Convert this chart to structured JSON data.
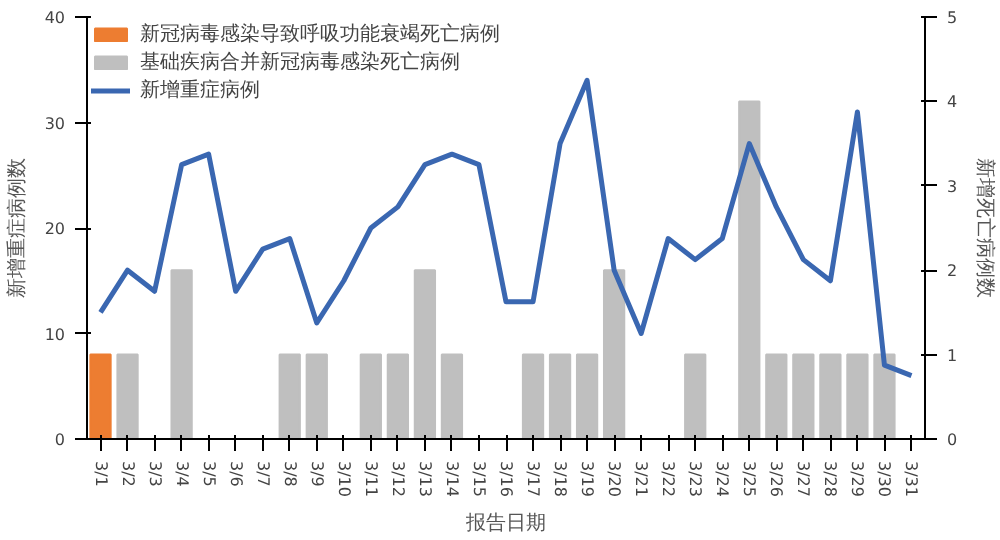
{
  "chart_data": {
    "type": "bar",
    "categories": [
      "3/1",
      "3/2",
      "3/3",
      "3/4",
      "3/5",
      "3/6",
      "3/7",
      "3/8",
      "3/9",
      "3/10",
      "3/11",
      "3/12",
      "3/13",
      "3/14",
      "3/15",
      "3/16",
      "3/17",
      "3/18",
      "3/19",
      "3/20",
      "3/21",
      "3/22",
      "3/23",
      "3/24",
      "3/25",
      "3/26",
      "3/27",
      "3/28",
      "3/29",
      "3/30",
      "3/31"
    ],
    "series": [
      {
        "name": "新冠病毒感染导致呼吸功能衰竭死亡病例",
        "color": "#ed7d31",
        "axis": "y2",
        "values": [
          1,
          null,
          null,
          null,
          null,
          null,
          null,
          null,
          null,
          null,
          null,
          null,
          null,
          null,
          null,
          null,
          null,
          null,
          null,
          null,
          null,
          null,
          null,
          null,
          null,
          null,
          null,
          null,
          null,
          null,
          null
        ]
      },
      {
        "name": "基础疾病合并新冠病毒感染死亡病例",
        "color": "#bfbfbf",
        "axis": "y2",
        "values": [
          null,
          1,
          null,
          2,
          null,
          null,
          null,
          1,
          1,
          null,
          1,
          1,
          2,
          1,
          null,
          null,
          1,
          1,
          1,
          2,
          null,
          null,
          1,
          null,
          4,
          1,
          1,
          1,
          1,
          1,
          null
        ]
      },
      {
        "name": "新增重症病例",
        "color": "#3a67b1",
        "type": "line",
        "values": [
          12,
          16,
          14,
          26,
          27,
          14,
          18,
          19,
          11,
          15,
          20,
          22,
          26,
          27,
          26,
          13,
          13,
          28,
          34,
          16,
          10,
          19,
          17,
          19,
          28,
          22,
          17,
          15,
          31,
          7,
          6
        ]
      }
    ],
    "xlabel": "报告日期",
    "ylabel": "新增重症病例数",
    "y2label": "新增死亡病例数",
    "ylim": [
      0,
      40
    ],
    "yticks": [
      0,
      10,
      20,
      30,
      40
    ],
    "y2lim": [
      0,
      5
    ],
    "y2ticks": [
      0,
      1,
      2,
      3,
      4,
      5
    ],
    "legend": "top left",
    "grid": false
  }
}
